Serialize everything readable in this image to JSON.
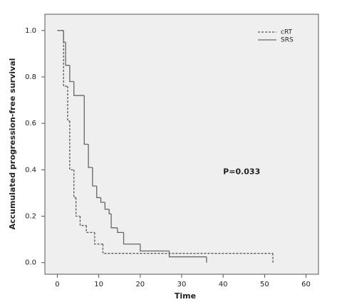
{
  "chart_data": {
    "type": "step",
    "xlabel": "Time",
    "ylabel": "Accumulated progression-free survival",
    "annotation": "P=0.033",
    "annotation_pos": [
      40,
      0.39
    ],
    "xlim": [
      -3,
      63
    ],
    "ylim": [
      -0.05,
      1.07
    ],
    "xticks": [
      0,
      10,
      20,
      30,
      40,
      50,
      60
    ],
    "yticks": [
      {
        "value": 0,
        "label": "0.0"
      },
      0.2,
      0.4,
      0.6,
      0.8,
      {
        "value": 1,
        "label": "1.0"
      }
    ],
    "legend": "upper right",
    "series": [
      {
        "name": "cRT",
        "color": "#555555",
        "dashed": true,
        "x": [
          0,
          1.5,
          2.5,
          3,
          4,
          4.5,
          5.5,
          7,
          9,
          11,
          52
        ],
        "values": [
          1,
          0.76,
          0.61,
          0.4,
          0.28,
          0.2,
          0.16,
          0.13,
          0.08,
          0.04,
          0
        ]
      },
      {
        "name": "SRS",
        "color": "#666666",
        "dashed": false,
        "x": [
          0.5,
          1.5,
          2,
          3,
          4,
          6.5,
          7.5,
          8.5,
          9.5,
          10.5,
          11.5,
          12.5,
          13,
          14.5,
          16,
          20,
          27,
          36
        ],
        "values": [
          1,
          0.95,
          0.85,
          0.78,
          0.72,
          0.51,
          0.41,
          0.33,
          0.28,
          0.26,
          0.23,
          0.21,
          0.15,
          0.13,
          0.08,
          0.05,
          0.025,
          0
        ]
      }
    ]
  }
}
